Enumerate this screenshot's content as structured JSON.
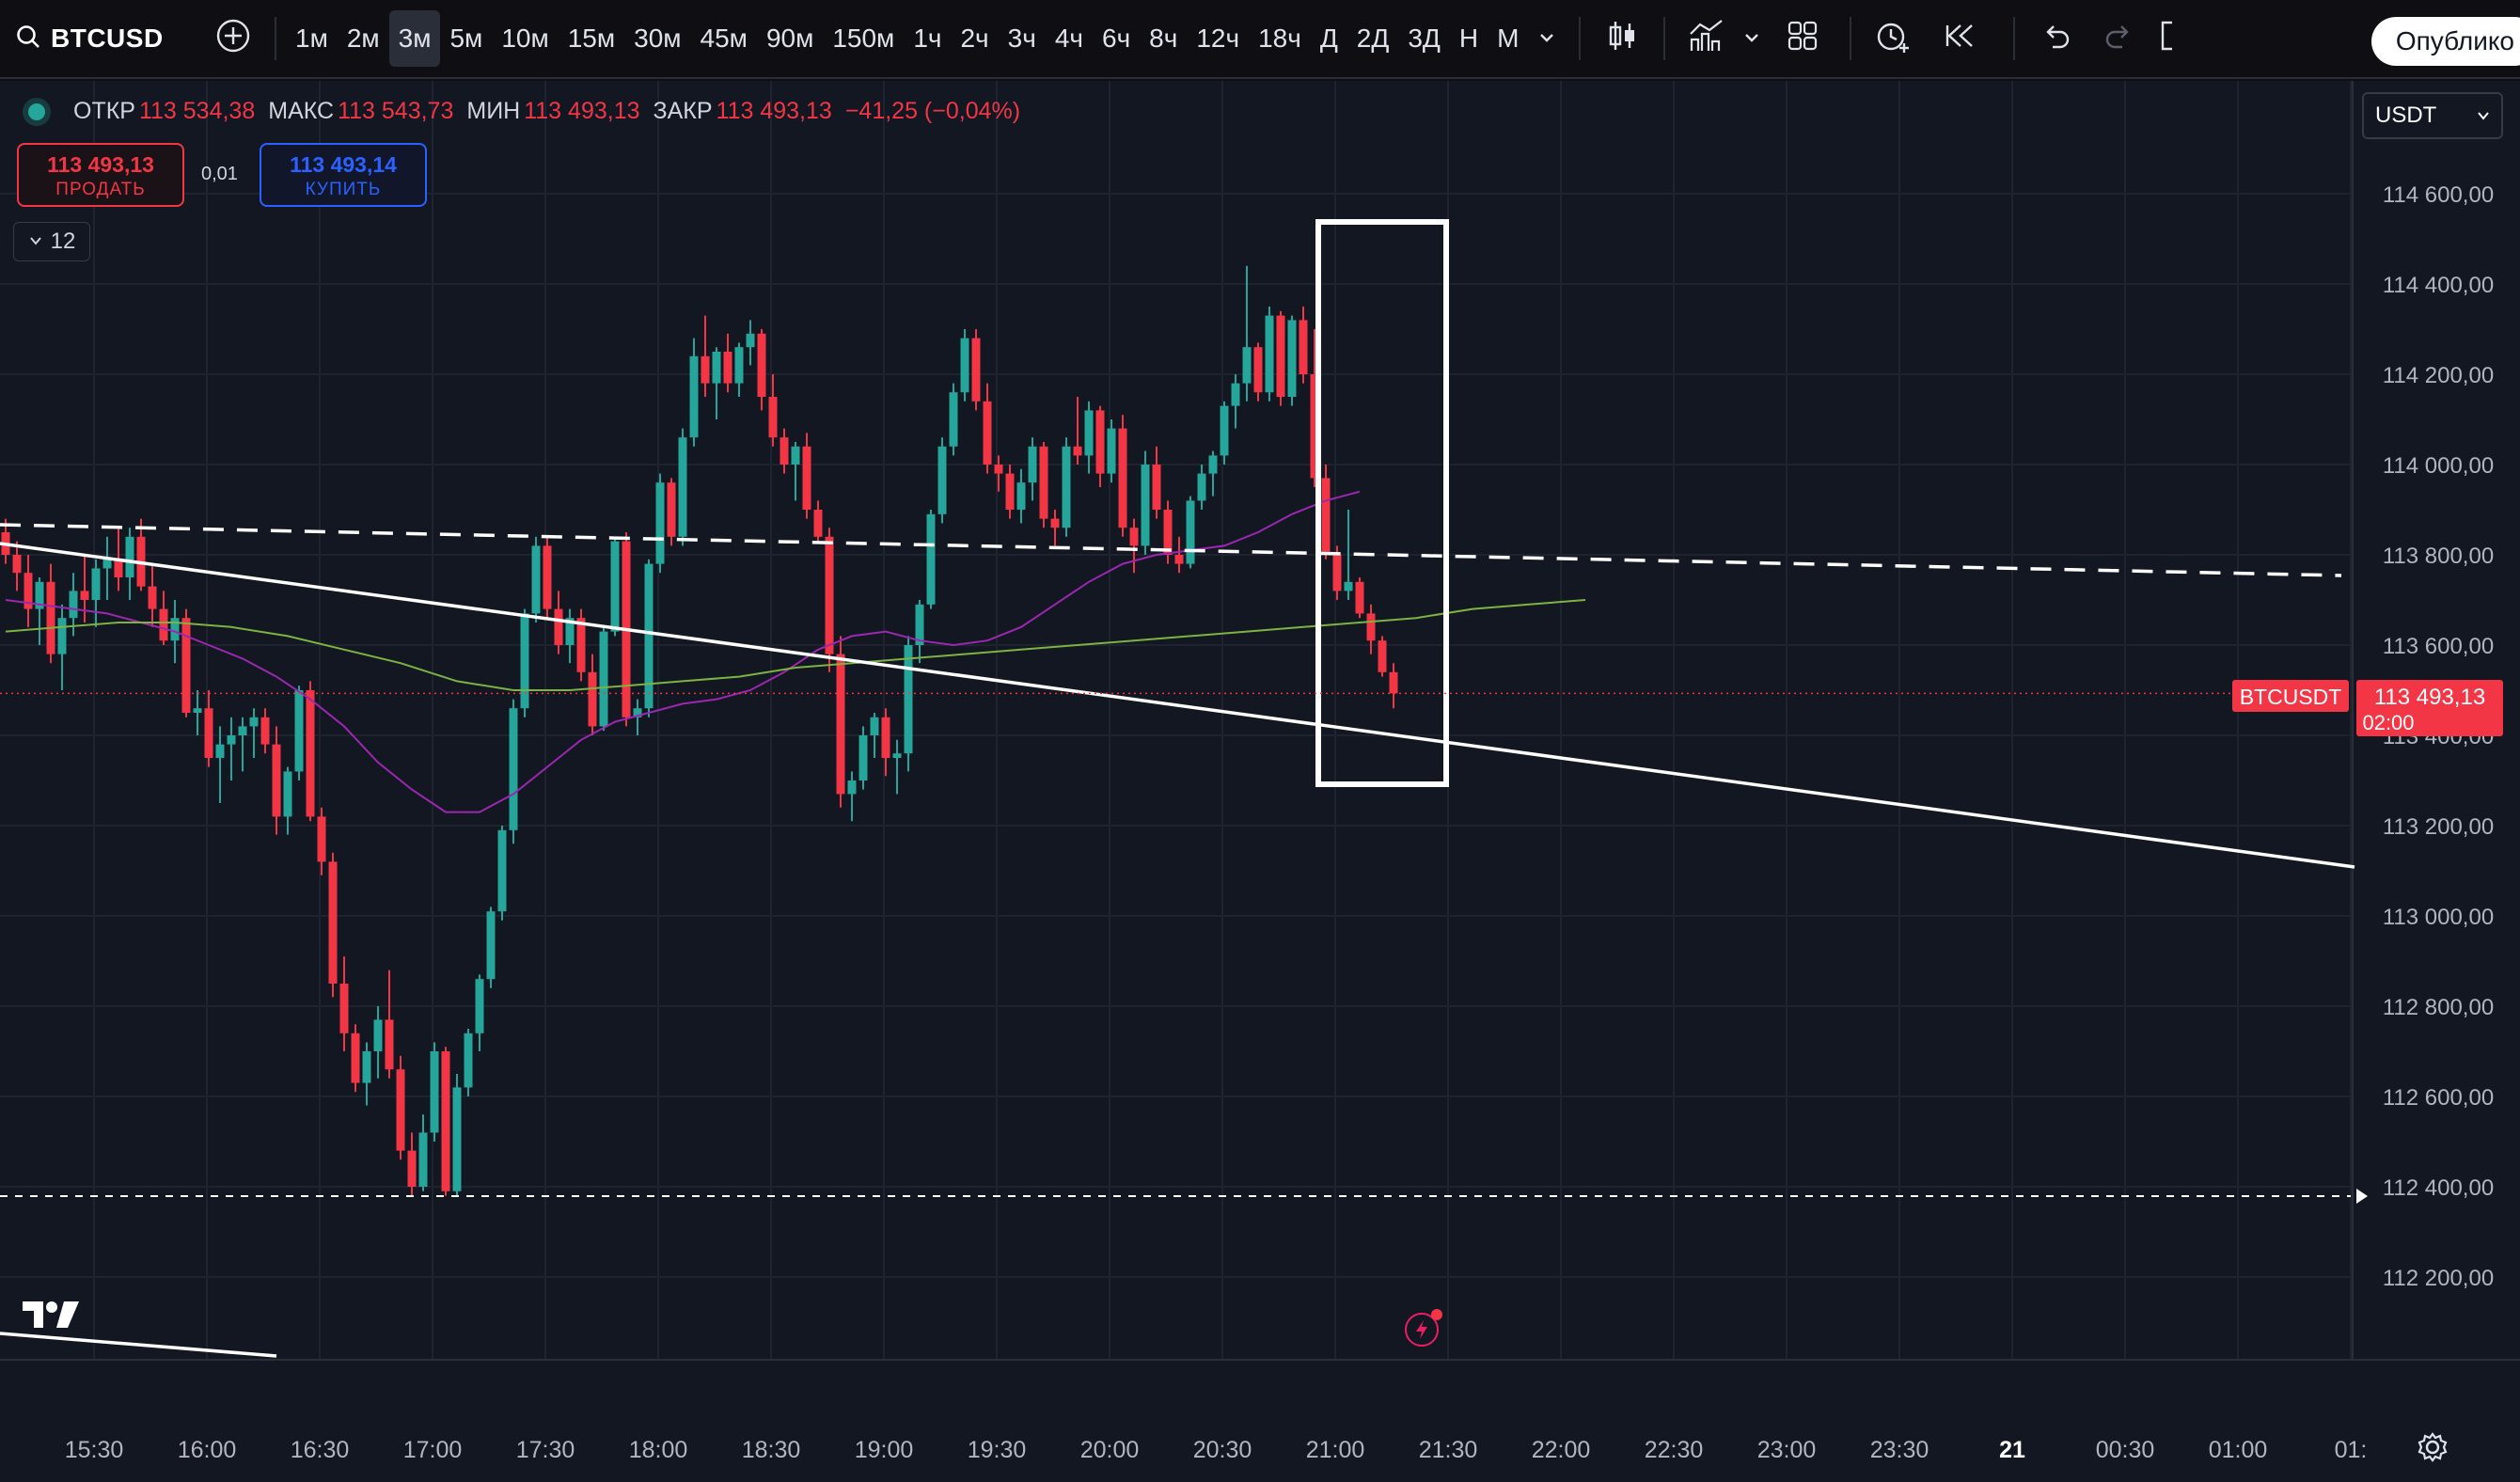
{
  "toolbar": {
    "symbol": "BTCUSD",
    "timeframes": [
      "1м",
      "2м",
      "3м",
      "5м",
      "10м",
      "15м",
      "30м",
      "45м",
      "90м",
      "150м",
      "1ч",
      "2ч",
      "3ч",
      "4ч",
      "6ч",
      "8ч",
      "12ч",
      "18ч",
      "Д",
      "2Д",
      "3Д",
      "Н",
      "М"
    ],
    "active_timeframe": "3м",
    "publish_label": "Опублико"
  },
  "legend": {
    "open_label": "ОТКР",
    "open": "113 534,38",
    "high_label": "МАКС",
    "high": "113 543,73",
    "low_label": "МИН",
    "low": "113 493,13",
    "close_label": "ЗАКР",
    "close": "113 493,13",
    "change": "−41,25 (−0,04%)"
  },
  "trade": {
    "sell_price": "113 493,13",
    "sell_label": "ПРОДАТЬ",
    "spread": "0,01",
    "buy_price": "113 493,14",
    "buy_label": "КУПИТЬ"
  },
  "indicators_collapse": "12",
  "currency": "USDT",
  "price_badge": {
    "symbol": "BTCUSDT",
    "price": "113 493,13",
    "countdown": "02:00"
  },
  "colors": {
    "up": "#26a69a",
    "down": "#f23645",
    "bg": "#131722",
    "ma_fast": "#9c27b0",
    "ma_slow": "#7cb342",
    "badge": "#f23645"
  },
  "chart_data": {
    "type": "candlestick",
    "price_axis": [
      "114 600,00",
      "114 400,00",
      "114 200,00",
      "114 000,00",
      "113 800,00",
      "113 600,00",
      "113 400,00",
      "113 200,00",
      "113 000,00",
      "112 800,00",
      "112 600,00",
      "112 400,00",
      "112 200,00"
    ],
    "time_axis": [
      "15:30",
      "16:00",
      "16:30",
      "17:00",
      "17:30",
      "18:00",
      "18:30",
      "19:00",
      "19:30",
      "20:00",
      "20:30",
      "21:00",
      "21:30",
      "22:00",
      "22:30",
      "23:00",
      "23:30",
      "21",
      "00:30",
      "01:00",
      "01:"
    ],
    "ylim": [
      112100,
      114800
    ],
    "candles": [
      [
        113850,
        113880,
        113780,
        113800
      ],
      [
        113800,
        113830,
        113720,
        113760
      ],
      [
        113760,
        113800,
        113640,
        113680
      ],
      [
        113680,
        113750,
        113600,
        113740
      ],
      [
        113740,
        113780,
        113560,
        113580
      ],
      [
        113580,
        113690,
        113500,
        113660
      ],
      [
        113660,
        113760,
        113620,
        113720
      ],
      [
        113720,
        113800,
        113650,
        113700
      ],
      [
        113700,
        113790,
        113640,
        113770
      ],
      [
        113770,
        113840,
        113700,
        113790
      ],
      [
        113790,
        113860,
        113720,
        113750
      ],
      [
        113750,
        113860,
        113700,
        113840
      ],
      [
        113840,
        113880,
        113720,
        113730
      ],
      [
        113730,
        113780,
        113640,
        113680
      ],
      [
        113680,
        113720,
        113600,
        113610
      ],
      [
        113610,
        113700,
        113560,
        113660
      ],
      [
        113660,
        113680,
        113440,
        113450
      ],
      [
        113450,
        113500,
        113400,
        113460
      ],
      [
        113460,
        113500,
        113330,
        113350
      ],
      [
        113350,
        113420,
        113250,
        113380
      ],
      [
        113380,
        113440,
        113300,
        113400
      ],
      [
        113400,
        113440,
        113320,
        113420
      ],
      [
        113420,
        113460,
        113350,
        113440
      ],
      [
        113440,
        113460,
        113360,
        113380
      ],
      [
        113380,
        113420,
        113180,
        113220
      ],
      [
        113220,
        113330,
        113180,
        113320
      ],
      [
        113320,
        113510,
        113300,
        113500
      ],
      [
        113500,
        113520,
        113210,
        113220
      ],
      [
        113220,
        113240,
        113090,
        113120
      ],
      [
        113120,
        113140,
        112820,
        112850
      ],
      [
        112850,
        112910,
        112700,
        112740
      ],
      [
        112740,
        112760,
        112610,
        112630
      ],
      [
        112630,
        112720,
        112580,
        112700
      ],
      [
        112700,
        112800,
        112640,
        112770
      ],
      [
        112770,
        112880,
        112640,
        112660
      ],
      [
        112660,
        112690,
        112460,
        112480
      ],
      [
        112480,
        112520,
        112380,
        112400
      ],
      [
        112400,
        112560,
        112390,
        112520
      ],
      [
        112520,
        112720,
        112500,
        112700
      ],
      [
        112700,
        112710,
        112380,
        112390
      ],
      [
        112390,
        112650,
        112380,
        112620
      ],
      [
        112620,
        112750,
        112600,
        112740
      ],
      [
        112740,
        112870,
        112700,
        112860
      ],
      [
        112860,
        113020,
        112840,
        113010
      ],
      [
        113010,
        113200,
        112990,
        113190
      ],
      [
        113190,
        113480,
        113160,
        113460
      ],
      [
        113460,
        113680,
        113440,
        113670
      ],
      [
        113670,
        113840,
        113650,
        113820
      ],
      [
        113820,
        113840,
        113660,
        113680
      ],
      [
        113680,
        113720,
        113580,
        113600
      ],
      [
        113600,
        113680,
        113560,
        113660
      ],
      [
        113660,
        113680,
        113520,
        113540
      ],
      [
        113540,
        113580,
        113400,
        113420
      ],
      [
        113420,
        113640,
        113410,
        113630
      ],
      [
        113630,
        113840,
        113620,
        113830
      ],
      [
        113830,
        113850,
        113420,
        113440
      ],
      [
        113440,
        113480,
        113400,
        113460
      ],
      [
        113460,
        113790,
        113440,
        113780
      ],
      [
        113780,
        113980,
        113760,
        113960
      ],
      [
        113960,
        113970,
        113820,
        113840
      ],
      [
        113840,
        114080,
        113820,
        114060
      ],
      [
        114060,
        114280,
        114040,
        114240
      ],
      [
        114240,
        114330,
        114150,
        114180
      ],
      [
        114180,
        114260,
        114100,
        114250
      ],
      [
        114250,
        114290,
        114160,
        114180
      ],
      [
        114180,
        114270,
        114150,
        114260
      ],
      [
        114260,
        114320,
        114220,
        114290
      ],
      [
        114290,
        114300,
        114120,
        114150
      ],
      [
        114150,
        114200,
        114040,
        114060
      ],
      [
        114060,
        114080,
        113980,
        114000
      ],
      [
        114000,
        114050,
        113920,
        114040
      ],
      [
        114040,
        114070,
        113880,
        113900
      ],
      [
        113900,
        113920,
        113830,
        113840
      ],
      [
        113840,
        113860,
        113540,
        113580
      ],
      [
        113580,
        113620,
        113240,
        113270
      ],
      [
        113270,
        113320,
        113210,
        113300
      ],
      [
        113300,
        113420,
        113280,
        113400
      ],
      [
        113400,
        113450,
        113350,
        113440
      ],
      [
        113440,
        113460,
        113310,
        113350
      ],
      [
        113350,
        113390,
        113270,
        113360
      ],
      [
        113360,
        113620,
        113320,
        113600
      ],
      [
        113600,
        113700,
        113560,
        113690
      ],
      [
        113690,
        113900,
        113680,
        113890
      ],
      [
        113890,
        114060,
        113870,
        114040
      ],
      [
        114040,
        114180,
        114020,
        114160
      ],
      [
        114160,
        114300,
        114140,
        114280
      ],
      [
        114280,
        114300,
        114120,
        114140
      ],
      [
        114140,
        114180,
        113980,
        114000
      ],
      [
        114000,
        114020,
        113940,
        113980
      ],
      [
        113980,
        114000,
        113880,
        113900
      ],
      [
        113900,
        113990,
        113870,
        113960
      ],
      [
        113960,
        114060,
        113920,
        114040
      ],
      [
        114040,
        114050,
        113860,
        113880
      ],
      [
        113880,
        113900,
        113820,
        113860
      ],
      [
        113860,
        114060,
        113840,
        114040
      ],
      [
        114040,
        114150,
        114000,
        114020
      ],
      [
        114020,
        114140,
        113980,
        114120
      ],
      [
        114120,
        114130,
        113950,
        113980
      ],
      [
        113980,
        114100,
        113960,
        114080
      ],
      [
        114080,
        114110,
        113840,
        113860
      ],
      [
        113860,
        113880,
        113760,
        113820
      ],
      [
        113820,
        114030,
        113800,
        114000
      ],
      [
        114000,
        114040,
        113880,
        113900
      ],
      [
        113900,
        113920,
        113780,
        113800
      ],
      [
        113800,
        113840,
        113760,
        113780
      ],
      [
        113780,
        113930,
        113770,
        113920
      ],
      [
        113920,
        114000,
        113900,
        113980
      ],
      [
        113980,
        114030,
        113930,
        114020
      ],
      [
        114020,
        114140,
        114000,
        114130
      ],
      [
        114130,
        114200,
        114080,
        114180
      ],
      [
        114180,
        114440,
        114140,
        114260
      ],
      [
        114260,
        114270,
        114140,
        114160
      ],
      [
        114160,
        114350,
        114140,
        114330
      ],
      [
        114330,
        114340,
        114130,
        114150
      ],
      [
        114150,
        114330,
        114130,
        114320
      ],
      [
        114320,
        114350,
        114180,
        114200
      ],
      [
        114200,
        114300,
        113950,
        113970
      ],
      [
        113970,
        114000,
        113790,
        113800
      ],
      [
        113800,
        113820,
        113700,
        113720
      ],
      [
        113720,
        113900,
        113700,
        113740
      ],
      [
        113740,
        113750,
        113660,
        113670
      ],
      [
        113670,
        113690,
        113580,
        113610
      ],
      [
        113610,
        113620,
        113530,
        113540
      ],
      [
        113540,
        113560,
        113460,
        113493
      ]
    ],
    "ma_fast": [
      113700,
      113690,
      113680,
      113670,
      113650,
      113630,
      113600,
      113570,
      113530,
      113480,
      113420,
      113340,
      113280,
      113230,
      113230,
      113270,
      113330,
      113390,
      113430,
      113450,
      113470,
      113480,
      113500,
      113540,
      113590,
      113620,
      113630,
      113610,
      113600,
      113610,
      113640,
      113690,
      113740,
      113780,
      113800,
      113810,
      113820,
      113850,
      113890,
      113920,
      113940
    ],
    "ma_slow": [
      113630,
      113640,
      113650,
      113650,
      113640,
      113620,
      113590,
      113560,
      113520,
      113500,
      113500,
      113510,
      113520,
      113530,
      113550,
      113560,
      113570,
      113580,
      113590,
      113600,
      113610,
      113620,
      113630,
      113640,
      113650,
      113660,
      113680,
      113690,
      113700
    ]
  }
}
